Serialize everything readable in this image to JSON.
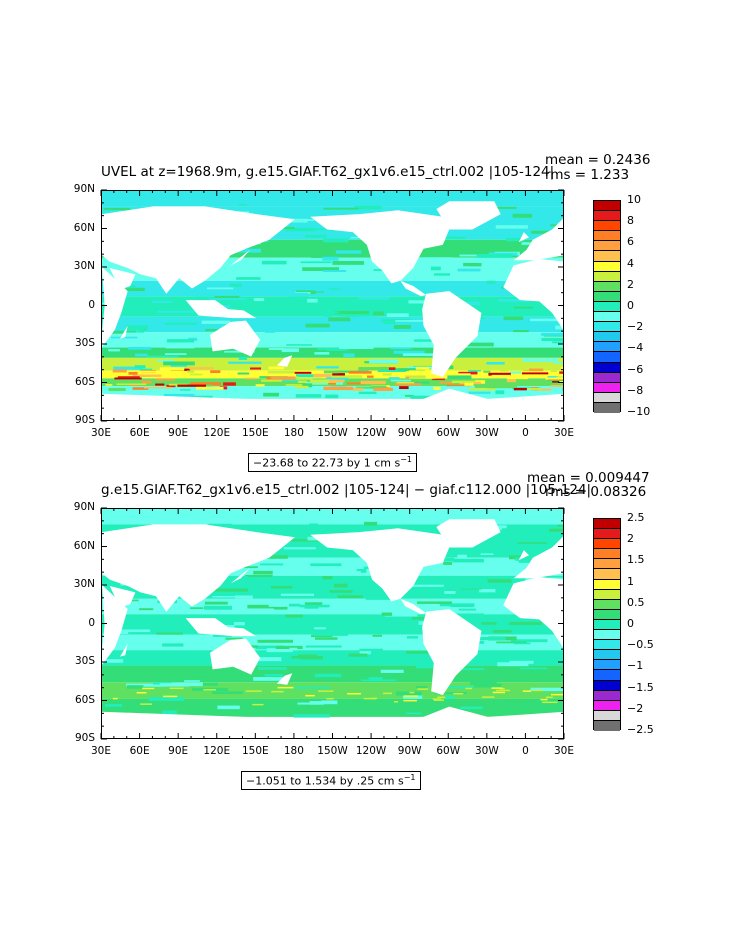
{
  "panels": [
    {
      "title": "UVEL at z=1968.9m, g.e15.GIAF.T62_gx1v6.e15_ctrl.002 |105-124|",
      "mean_text": "mean = 0.2436",
      "rms_text": "rms = 1.233",
      "range_text": "−23.68 to 22.73 by 1 cm s",
      "range_sup": "−1",
      "colorbar": {
        "labels": [
          "10",
          "8",
          "6",
          "4",
          "2",
          "0",
          "−2",
          "−4",
          "−6",
          "−8",
          "−10"
        ],
        "colors": [
          "#c00000",
          "#e41a1c",
          "#ff4500",
          "#ff7f27",
          "#ffa040",
          "#ffc050",
          "#ffff33",
          "#c8f03c",
          "#60e060",
          "#33dd77",
          "#22eebb",
          "#66ffee",
          "#33e8e8",
          "#22c8ee",
          "#22a0ff",
          "#1464ff",
          "#0000d0",
          "#9a2ad0",
          "#ee22ee",
          "#d8d8d8",
          "#707070"
        ]
      }
    },
    {
      "title": "g.e15.GIAF.T62_gx1v6.e15_ctrl.002 |105-124| − giaf.c112.000 |105-124|",
      "mean_text": "mean = 0.009447",
      "rms_text": "rms = 0.08326",
      "range_text": "−1.051 to 1.534 by .25 cm s",
      "range_sup": "−1",
      "colorbar": {
        "labels": [
          "2.5",
          "2",
          "1.5",
          "1",
          "0.5",
          "0",
          "−0.5",
          "−1",
          "−1.5",
          "−2",
          "−2.5"
        ],
        "colors": [
          "#c00000",
          "#e41a1c",
          "#ff4500",
          "#ff7f27",
          "#ffa040",
          "#ffc050",
          "#ffff33",
          "#c8f03c",
          "#60e060",
          "#33dd77",
          "#22eebb",
          "#66ffee",
          "#33e8e8",
          "#22c8ee",
          "#22a0ff",
          "#1464ff",
          "#0000d0",
          "#9a2ad0",
          "#ee22ee",
          "#d8d8d8",
          "#707070"
        ]
      }
    }
  ],
  "axes": {
    "lat_labels": [
      "90N",
      "60N",
      "30N",
      "0",
      "30S",
      "60S",
      "90S"
    ],
    "lon_labels": [
      "30E",
      "60E",
      "90E",
      "120E",
      "150E",
      "180",
      "150W",
      "120W",
      "90W",
      "60W",
      "30W",
      "0",
      "30E"
    ]
  },
  "chart_data": [
    {
      "type": "heatmap",
      "title": "UVEL at z=1968.9m, g.e15.GIAF.T62_gx1v6.e15_ctrl.002 |105-124|",
      "x_ticks": [
        "30E",
        "60E",
        "90E",
        "120E",
        "150E",
        "180",
        "150W",
        "120W",
        "90W",
        "60W",
        "30W",
        "0",
        "30E"
      ],
      "y_ticks": [
        "90N",
        "60N",
        "30N",
        "0",
        "30S",
        "60S",
        "90S"
      ],
      "xlim": [
        30,
        390
      ],
      "ylim": [
        -90,
        90
      ],
      "color_levels": [
        -10,
        -8,
        -6,
        -4,
        -2,
        0,
        2,
        4,
        6,
        8,
        10
      ],
      "mean": 0.2436,
      "rms": 1.233,
      "field_min": -23.68,
      "field_max": 22.73,
      "contour_interval": 1,
      "units": "cm s-1"
    },
    {
      "type": "heatmap",
      "title": "g.e15.GIAF.T62_gx1v6.e15_ctrl.002 |105-124| − giaf.c112.000 |105-124|",
      "x_ticks": [
        "30E",
        "60E",
        "90E",
        "120E",
        "150E",
        "180",
        "150W",
        "120W",
        "90W",
        "60W",
        "30W",
        "0",
        "30E"
      ],
      "y_ticks": [
        "90N",
        "60N",
        "30N",
        "0",
        "30S",
        "60S",
        "90S"
      ],
      "xlim": [
        30,
        390
      ],
      "ylim": [
        -90,
        90
      ],
      "color_levels": [
        -2.5,
        -2,
        -1.5,
        -1,
        -0.5,
        0,
        0.5,
        1,
        1.5,
        2,
        2.5
      ],
      "mean": 0.009447,
      "rms": 0.08326,
      "field_min": -1.051,
      "field_max": 1.534,
      "contour_interval": 0.25,
      "units": "cm s-1"
    }
  ]
}
